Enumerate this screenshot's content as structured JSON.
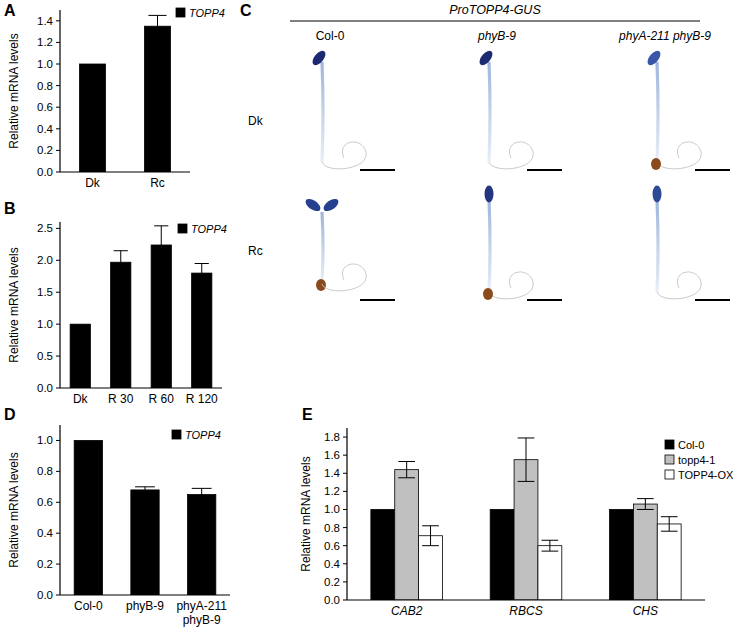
{
  "chart_data": [
    {
      "type": "bar",
      "title": "A",
      "y_label": "Relative mRNA levels",
      "categories": [
        "Dk",
        "Rc"
      ],
      "series": [
        {
          "name": "TOPP4",
          "color": "#000000",
          "values": [
            1.0,
            1.35
          ],
          "errors": [
            null,
            0.1
          ]
        }
      ],
      "ylim": [
        0,
        1.5
      ],
      "yticks": [
        {
          "value": 0,
          "label": "0.0"
        },
        0.2,
        0.4,
        0.6,
        0.8,
        {
          "value": 1,
          "label": "1.0"
        },
        1.2,
        1.4
      ],
      "legend": "top-right"
    },
    {
      "type": "bar",
      "title": "B",
      "y_label": "Relative mRNA levels",
      "categories": [
        "Dk",
        "R 30",
        "R 60",
        "R 120"
      ],
      "series": [
        {
          "name": "TOPP4",
          "color": "#000000",
          "values": [
            1.0,
            1.97,
            2.24,
            1.8
          ],
          "errors": [
            null,
            0.18,
            0.3,
            0.15
          ]
        }
      ],
      "ylim": [
        0,
        2.6
      ],
      "yticks": [
        {
          "value": 0,
          "label": "0.0"
        },
        0.5,
        {
          "value": 1,
          "label": "1.0"
        },
        1.5,
        {
          "value": 2,
          "label": "2.0"
        },
        2.5
      ],
      "legend": "top-right"
    },
    {
      "type": "bar",
      "title": "D",
      "y_label": "Relative mRNA levels",
      "categories": [
        "Col-0",
        "phyB-9",
        "phyA-211 phyB-9"
      ],
      "series": [
        {
          "name": "TOPP4",
          "color": "#000000",
          "values": [
            1.0,
            0.68,
            0.65
          ],
          "errors": [
            null,
            0.02,
            0.04
          ]
        }
      ],
      "ylim": [
        0,
        1.1
      ],
      "yticks": [
        {
          "value": 0,
          "label": "0.0"
        },
        0.2,
        0.4,
        0.6,
        0.8,
        {
          "value": 1,
          "label": "1.0"
        }
      ],
      "legend": "top-right"
    },
    {
      "type": "bar",
      "title": "E",
      "y_label": "Relative mRNA levels",
      "categories": [
        "CAB2",
        "RBCS",
        "CHS"
      ],
      "series": [
        {
          "name": "Col-0",
          "color": "#000000",
          "values": [
            1.0,
            1.0,
            1.0
          ],
          "errors": [
            null,
            null,
            null
          ]
        },
        {
          "name": "topp4-1",
          "color": "#c0c0c0",
          "values": [
            1.44,
            1.55,
            1.06
          ],
          "errors": [
            0.09,
            0.24,
            0.06
          ]
        },
        {
          "name": "TOPP4-OX",
          "color": "#ffffff",
          "values": [
            0.71,
            0.6,
            0.84
          ],
          "errors": [
            0.11,
            0.06,
            0.08
          ]
        }
      ],
      "ylim": [
        0,
        1.9
      ],
      "yticks": [
        {
          "value": 0,
          "label": "0.0"
        },
        0.2,
        0.4,
        0.6,
        0.8,
        {
          "value": 1,
          "label": "1.0"
        },
        1.2,
        1.4,
        1.6,
        1.8
      ],
      "legend": "top-right"
    }
  ],
  "image_panel": {
    "title": "C",
    "header": "ProTOPP4-GUS",
    "columns": [
      "Col-0",
      "phyB-9",
      "phyA-211 phyB-9"
    ],
    "rows": [
      "Dk",
      "Rc"
    ]
  }
}
